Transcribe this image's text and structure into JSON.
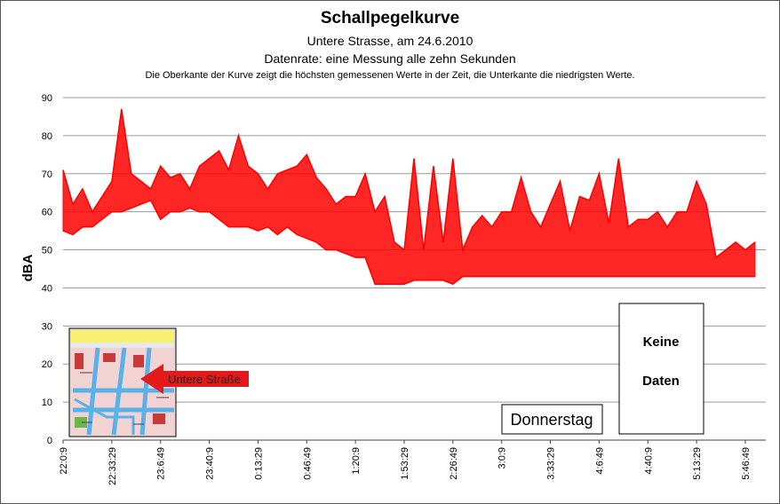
{
  "chart_data": {
    "type": "line",
    "title": "Schallpegelkurve",
    "subtitle_1": "Untere  Strasse, am 24.6.2010",
    "subtitle_2": "Datenrate: eine Messung alle zehn Sekunden",
    "subtitle_3": "Die Oberkante der Kurve zeigt die höchsten  gemessenen Werte  in der Zeit, die Unterkante  die niedrigsten Werte.",
    "ylabel": "dBA",
    "ylim": [
      0,
      90
    ],
    "yticks": [
      0,
      10,
      20,
      30,
      40,
      50,
      60,
      70,
      80,
      90
    ],
    "xtick_labels": [
      "22:0:9",
      "22:33:29",
      "23:6:49",
      "23:40:9",
      "0:13:29",
      "0:46:49",
      "1:20:9",
      "1:53:29",
      "2:26:49",
      "3:0:9",
      "3:33:29",
      "4:6:49",
      "4:40:9",
      "5:13:29",
      "5:46:49"
    ],
    "grid": true,
    "series": [
      {
        "color": "#ff0000",
        "x_index": [
          0,
          0.2,
          0.4,
          0.6,
          0.8,
          1.0,
          1.2,
          1.4,
          1.6,
          1.8,
          2.0,
          2.2,
          2.4,
          2.6,
          2.8,
          3.0,
          3.2,
          3.4,
          3.6,
          3.8,
          4.0,
          4.2,
          4.4,
          4.6,
          4.8,
          5.0,
          5.2,
          5.4,
          5.6,
          5.8,
          6.0,
          6.2,
          6.4,
          6.6,
          6.8,
          7.0,
          7.2,
          7.4,
          7.6,
          7.8,
          8.0,
          8.2,
          8.4,
          8.6,
          8.8,
          9.0,
          9.2,
          9.4,
          9.6,
          9.8,
          10.0,
          10.2,
          10.4,
          10.6,
          10.8,
          11.0,
          11.2,
          11.4,
          11.6,
          11.8,
          12.0,
          12.2,
          12.4,
          12.6,
          12.8,
          13.0,
          13.2,
          13.4,
          13.6,
          13.8,
          14.0,
          14.2
        ],
        "high": [
          71,
          62,
          66,
          60,
          64,
          68,
          87,
          70,
          68,
          66,
          72,
          69,
          70,
          66,
          72,
          74,
          76,
          71,
          80,
          72,
          70,
          66,
          70,
          71,
          72,
          75,
          69,
          66,
          62,
          64,
          64,
          70,
          60,
          64,
          52,
          50,
          74,
          50,
          72,
          52,
          74,
          50,
          56,
          59,
          56,
          60,
          60,
          69,
          60,
          56,
          62,
          68,
          55,
          64,
          63,
          70,
          57,
          74,
          56,
          58,
          58,
          60,
          56,
          60,
          60,
          68,
          62,
          48,
          50,
          52,
          50,
          52
        ],
        "low": [
          55,
          54,
          56,
          56,
          58,
          60,
          60,
          61,
          62,
          63,
          58,
          60,
          60,
          61,
          60,
          60,
          58,
          56,
          56,
          56,
          55,
          56,
          54,
          56,
          54,
          53,
          52,
          50,
          50,
          49,
          48,
          48,
          41,
          41,
          41,
          41,
          42,
          42,
          42,
          42,
          41,
          43,
          43,
          43,
          43,
          43,
          43,
          43,
          43,
          43,
          43,
          43,
          43,
          43,
          43,
          43,
          43,
          43,
          43,
          43,
          43,
          43,
          43,
          43,
          43,
          43,
          43,
          43,
          43,
          43,
          43,
          43
        ]
      }
    ],
    "annotations": {
      "inset_label": "Untere Straße",
      "day_label": "Donnerstag",
      "no_data_line1": "Keine",
      "no_data_line2": "Daten"
    }
  }
}
